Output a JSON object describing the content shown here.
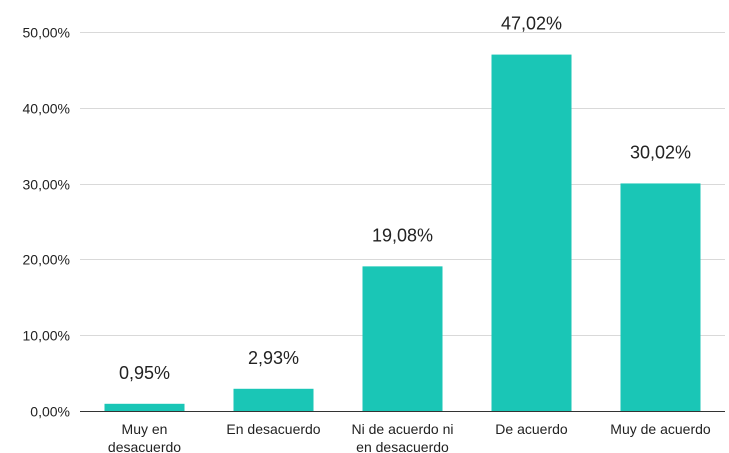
{
  "chart_data": {
    "type": "bar",
    "title": "",
    "xlabel": "",
    "ylabel": "",
    "categories": [
      [
        "Muy en",
        "desacuerdo"
      ],
      [
        "En desacuerdo"
      ],
      [
        "Ni de acuerdo ni",
        "en desacuerdo"
      ],
      [
        "De acuerdo"
      ],
      [
        "Muy de acuerdo"
      ]
    ],
    "values": [
      0.95,
      2.93,
      19.08,
      47.02,
      30.02
    ],
    "data_labels": [
      "0,95%",
      "2,93%",
      "19,08%",
      "47,02%",
      "30,02%"
    ],
    "ylim": [
      0,
      50
    ],
    "yticks": [
      0,
      10,
      20,
      30,
      40,
      50
    ],
    "ytick_labels": [
      "0,00%",
      "10,00%",
      "20,00%",
      "30,00%",
      "40,00%",
      "50,00%"
    ],
    "grid": true,
    "legend": "none",
    "colors": {
      "bar": "#1ac6b6",
      "grid": "#d9d9d9",
      "axis": "#333333",
      "text": "#222222"
    }
  }
}
